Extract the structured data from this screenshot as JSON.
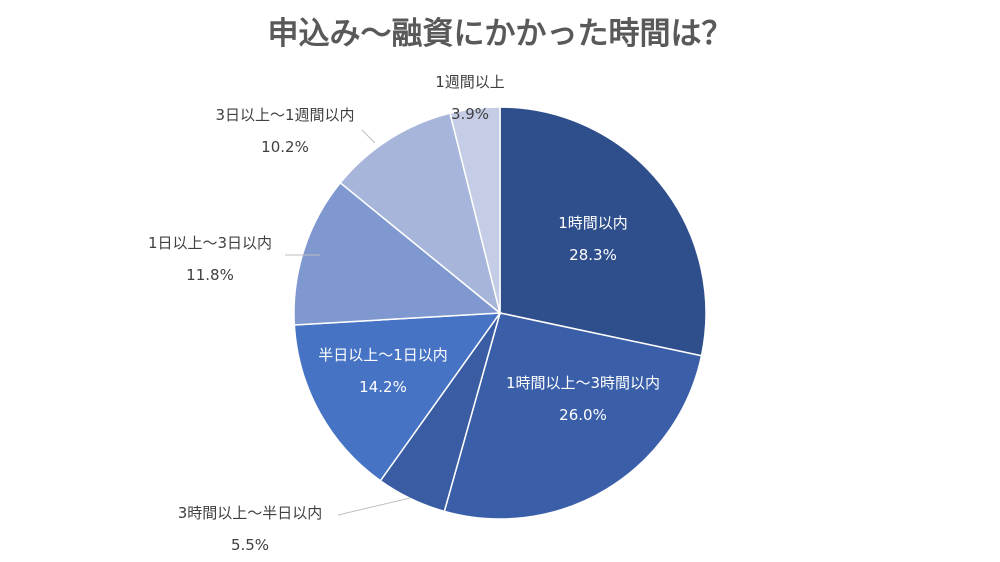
{
  "chart_data": {
    "type": "pie",
    "title": "申込み～融資にかかった時間は？",
    "categories": [
      "1時間以内",
      "1時間以上～3時間以内",
      "3時間以上～半日以内",
      "半日以上～1日以内",
      "1日以上～3日以内",
      "3日以上～1週間以内",
      "1週間以上"
    ],
    "values": [
      28.3,
      26.0,
      5.5,
      14.2,
      11.8,
      10.2,
      3.9
    ],
    "value_labels": [
      "28.3%",
      "26.0%",
      "5.5%",
      "14.2%",
      "11.8%",
      "10.2%",
      "3.9%"
    ],
    "colors": [
      "#2f4f8c",
      "#3a5fa8",
      "#3a5ca3",
      "#4673c4",
      "#7f98d0",
      "#a8b5db",
      "#c5cde6"
    ],
    "start": "12 o'clock",
    "direction": "clockwise",
    "legend": "none"
  }
}
